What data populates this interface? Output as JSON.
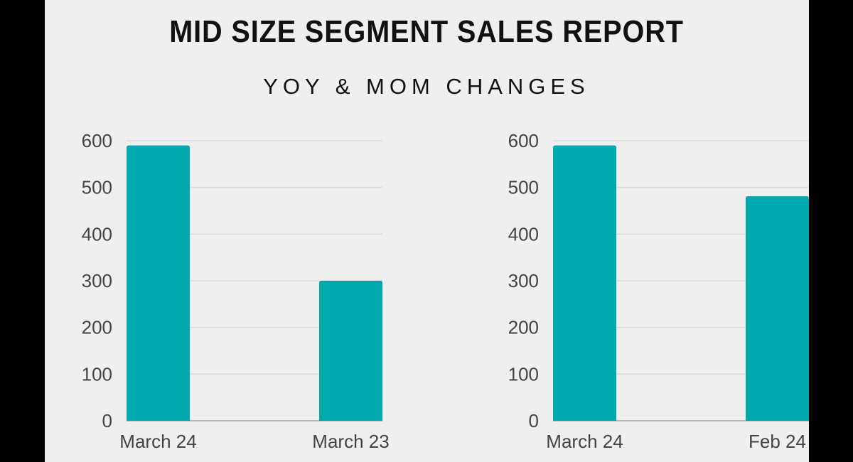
{
  "title": "MID SIZE SEGMENT SALES REPORT",
  "subtitle": "YOY & MOM CHANGES",
  "colors": {
    "bar": "#00a9ad",
    "grid": "#d6d6d6",
    "axis": "#aaaaaa",
    "background": "#efefef",
    "frame": "#000000"
  },
  "chart_data": [
    {
      "type": "bar",
      "categories": [
        "March 24",
        "March 23"
      ],
      "values": [
        590,
        300
      ],
      "ylim": [
        0,
        600
      ],
      "yticks": [
        0,
        100,
        200,
        300,
        400,
        500,
        600
      ],
      "grid": true,
      "xlabel": "",
      "ylabel": ""
    },
    {
      "type": "bar",
      "categories": [
        "March 24",
        "Feb 24"
      ],
      "values": [
        590,
        481
      ],
      "ylim": [
        0,
        600
      ],
      "yticks": [
        0,
        100,
        200,
        300,
        400,
        500,
        600
      ],
      "grid": true,
      "xlabel": "",
      "ylabel": ""
    }
  ]
}
